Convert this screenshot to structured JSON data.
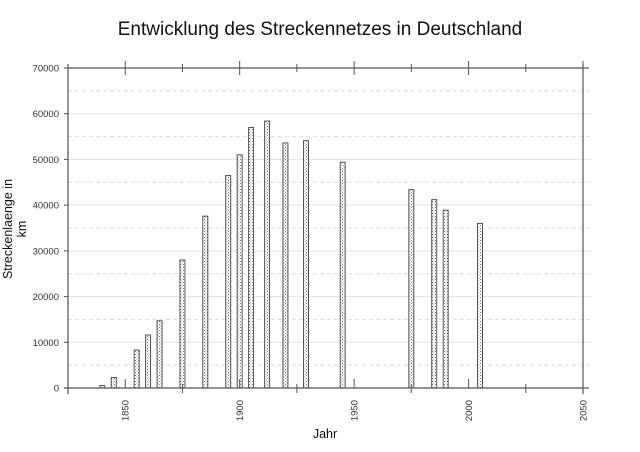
{
  "chart_data": {
    "type": "bar",
    "title": "Entwicklung des Streckennetzes in Deutschland",
    "xlabel": "Jahr",
    "ylabel": "Streckenlaenge in km",
    "xlim": [
      1825,
      2050
    ],
    "ylim": [
      0,
      70000
    ],
    "x_ticks": [
      1850,
      1900,
      1950,
      2000,
      2050
    ],
    "y_ticks": [
      0,
      10000,
      20000,
      30000,
      40000,
      50000,
      60000,
      70000
    ],
    "grid": {
      "major": "solid",
      "minor": "dashed",
      "orientation": "horizontal"
    },
    "legend": null,
    "bar_fill": "dotted-pattern",
    "x": [
      1840,
      1845,
      1855,
      1860,
      1865,
      1875,
      1885,
      1895,
      1900,
      1905,
      1912,
      1920,
      1929,
      1945,
      1975,
      1985,
      1990,
      2005
    ],
    "values": [
      550,
      2300,
      8300,
      11600,
      14700,
      28000,
      37600,
      46500,
      51000,
      57000,
      58400,
      53600,
      54100,
      49400,
      43400,
      41200,
      38900,
      36000
    ]
  }
}
